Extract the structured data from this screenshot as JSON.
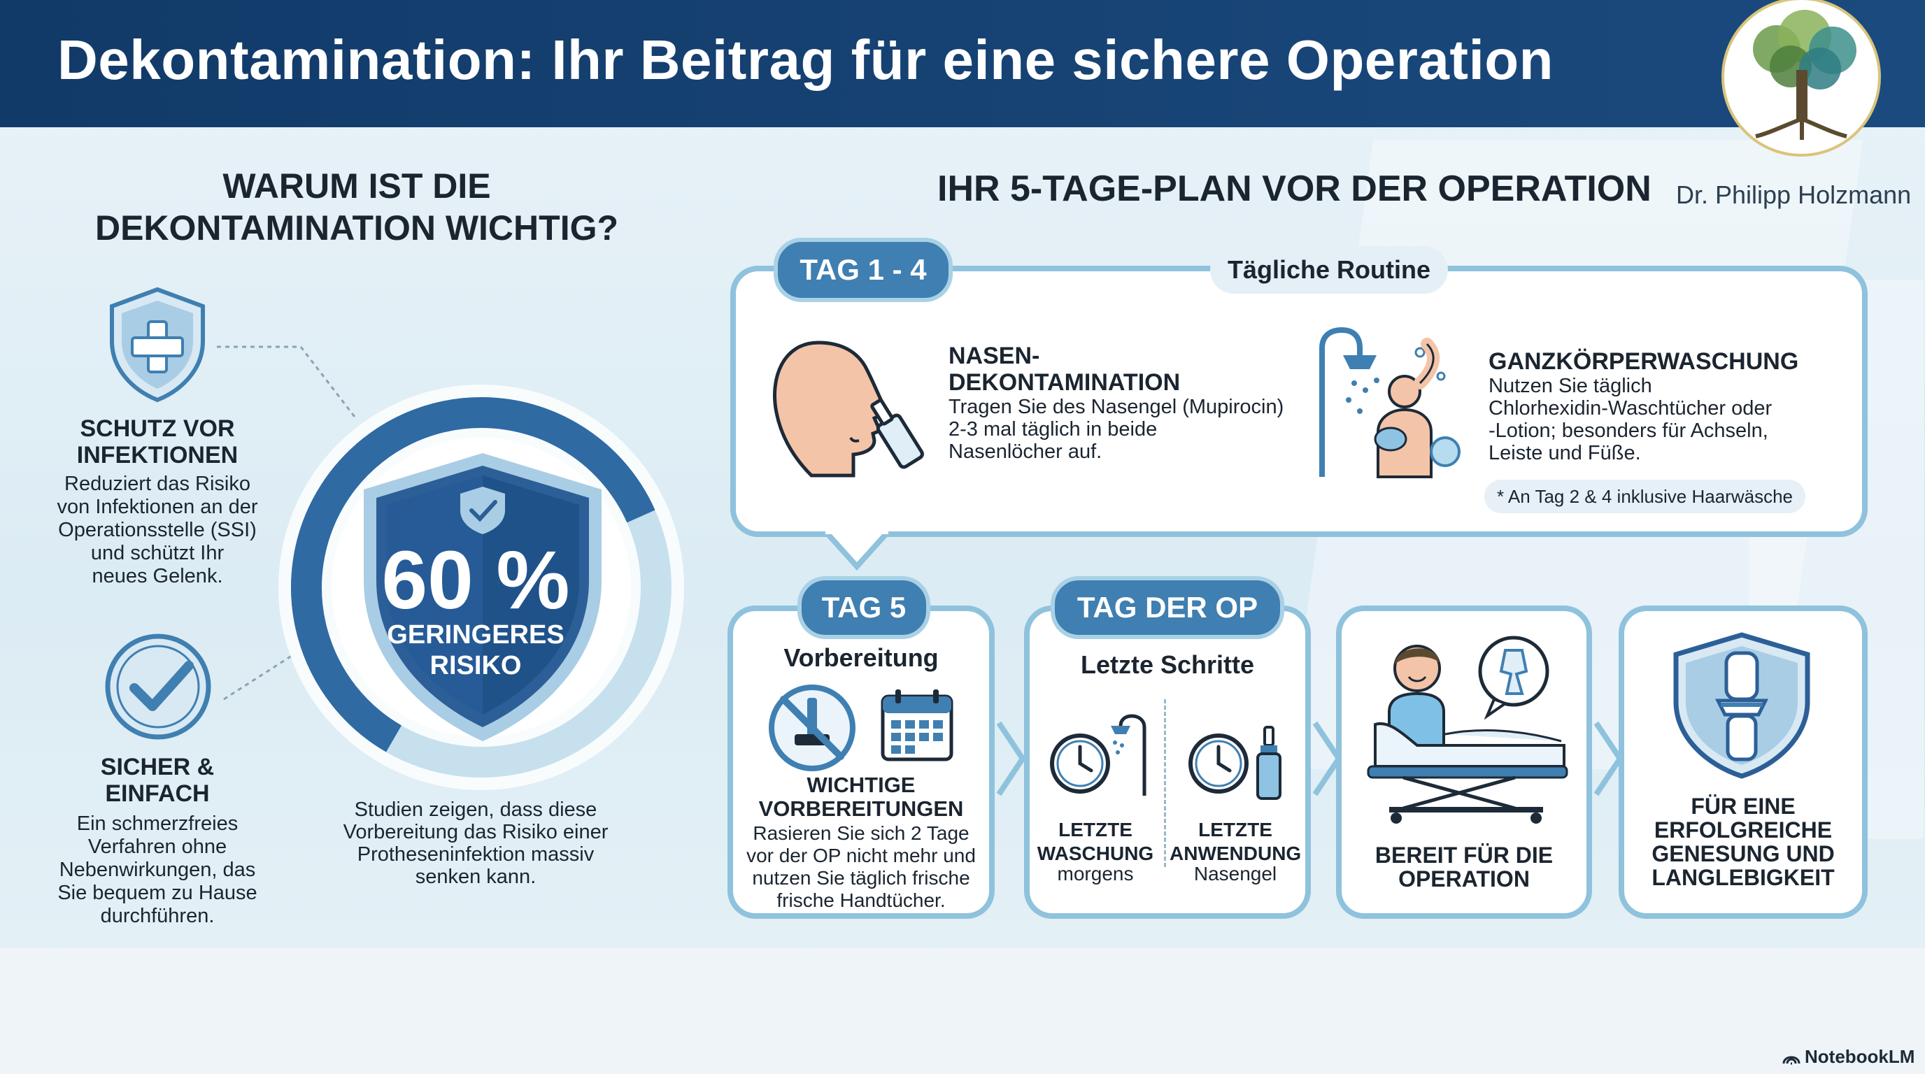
{
  "header": {
    "title": "Dekontamination: Ihr Beitrag für eine sichere Operation"
  },
  "brand": {
    "doctor": "Dr. Philipp Holzmann",
    "logo_icon": "tree-logo-icon"
  },
  "left": {
    "title_line1": "WARUM IST DIE",
    "title_line2": "DEKONTAMINATION WICHTIG?",
    "feature1": {
      "icon": "shield-cross-icon",
      "title_line1": "SCHUTZ VOR",
      "title_line2": "INFEKTIONEN",
      "text_lines": [
        "Reduziert das Risiko",
        "von Infektionen an der",
        "Operationsstelle (SSI)",
        "und schützt Ihr",
        "neues Gelenk."
      ]
    },
    "feature2": {
      "icon": "checkmark-circle-icon",
      "title_line1": "SICHER &",
      "title_line2": "EINFACH",
      "text_lines": [
        "Ein schmerzfreies",
        "Verfahren ohne",
        "Nebenwirkungen, das",
        "Sie bequem zu Hause",
        "durchführen."
      ]
    },
    "stat": {
      "value": "60 %",
      "percent": 60,
      "label_line1": "GERINGERES",
      "label_line2": "RISIKO",
      "note_lines": [
        "Studien zeigen, dass diese",
        "Vorbereitung das Risiko einer",
        "Protheseninfektion massiv",
        "senken kann."
      ]
    }
  },
  "plan": {
    "title": "IHR 5-TAGE-PLAN VOR DER OPERATION",
    "days_1_4": {
      "pill": "TAG 1 - 4",
      "routine": "Tägliche Routine",
      "nasal": {
        "icon": "nose-spray-icon",
        "title_line1": "NASEN-",
        "title_line2": "DEKONTAMINATION",
        "text_lines": [
          "Tragen Sie des Nasengel (Mupirocin)",
          "2-3 mal täglich in beide",
          "Nasenlöcher auf."
        ]
      },
      "body": {
        "icon": "shower-person-icon",
        "title": "GANZKÖRPERWASCHUNG",
        "text_lines": [
          "Nutzen Sie täglich",
          "Chlorhexidin-Waschtücher oder",
          "-Lotion; besonders für Achseln,",
          "Leiste und Füße."
        ],
        "note": "* An Tag 2 & 4 inklusive Haarwäsche"
      }
    },
    "day_5": {
      "pill": "TAG 5",
      "subtitle": "Vorbereitung",
      "icons": [
        "no-razor-icon",
        "calendar-icon"
      ],
      "title_line1": "WICHTIGE",
      "title_line2": "VORBEREITUNGEN",
      "text_lines": [
        "Rasieren Sie sich 2 Tage",
        "vor der OP nicht mehr und",
        "nutzen Sie täglich frische",
        "frische Handtücher."
      ]
    },
    "op_day": {
      "pill": "TAG DER OP",
      "subtitle": "Letzte Schritte",
      "left": {
        "icons": [
          "clock-icon",
          "shower-icon"
        ],
        "title_line1": "LETZTE",
        "title_line2": "WASCHUNG",
        "text": "morgens"
      },
      "right": {
        "icons": [
          "clock-icon",
          "nasal-spray-icon"
        ],
        "title_line1": "LETZTE",
        "title_line2": "ANWENDUNG",
        "text": "Nasengel"
      }
    },
    "ready": {
      "icon": "patient-bed-icon",
      "title_line1": "BEREIT FÜR DIE",
      "title_line2": "OPERATION"
    },
    "recovery": {
      "icon": "shield-knee-icon",
      "title_lines": [
        "FÜR EINE",
        "ERFOLGREICHE",
        "GENESUNG UND",
        "LANGLEBIGKEIT"
      ]
    }
  },
  "footer": {
    "brand": "NotebookLM"
  },
  "colors": {
    "header": "#113a68",
    "accent": "#3f7fb1",
    "border": "#8fc2dc",
    "skin": "#f4c4a8"
  }
}
